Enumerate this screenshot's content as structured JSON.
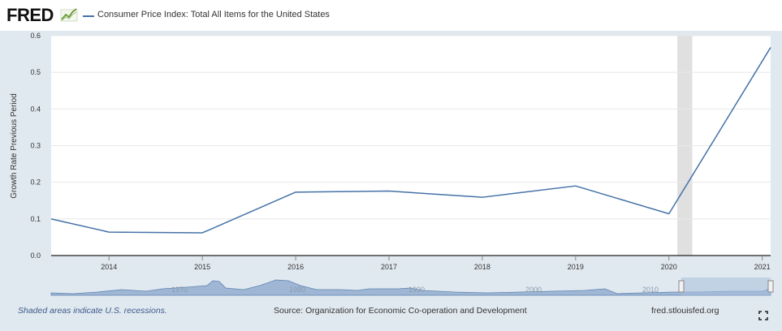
{
  "header": {
    "logo": "FRED",
    "legend_label": "Consumer Price Index: Total All Items for the United States"
  },
  "chart_data": {
    "type": "line",
    "title": "Consumer Price Index: Total All Items for the United States",
    "ylabel": "Growth Rate Previous Period",
    "xlabel": "",
    "ylim": [
      0,
      0.6
    ],
    "yticks": [
      "0.0",
      "0.1",
      "0.2",
      "0.3",
      "0.4",
      "0.5",
      "0.6"
    ],
    "xlim": [
      2013.38,
      2021.09
    ],
    "xticks": [
      "2014",
      "2015",
      "2016",
      "2017",
      "2018",
      "2019",
      "2020",
      "2021"
    ],
    "recessions": [
      {
        "start": 2020.09,
        "end": 2020.25
      }
    ],
    "series": [
      {
        "name": "Consumer Price Index: Total All Items for the United States",
        "color": "#4572a7",
        "x": [
          2013.38,
          2014.0,
          2015.0,
          2016.0,
          2017.0,
          2018.0,
          2019.0,
          2020.0,
          2021.09
        ],
        "values": [
          0.1,
          0.064,
          0.062,
          0.173,
          0.176,
          0.159,
          0.19,
          0.114,
          0.568
        ]
      }
    ]
  },
  "navigator": {
    "labels": [
      "1970",
      "1980",
      "1990",
      "2000",
      "2010"
    ]
  },
  "footer": {
    "recession_note": "Shaded areas indicate U.S. recessions.",
    "source": "Source: Organization for Economic Co-operation and Development",
    "url": "fred.stlouisfed.org"
  }
}
